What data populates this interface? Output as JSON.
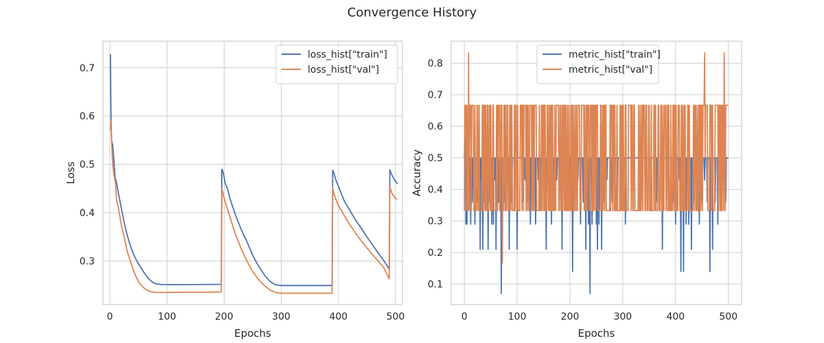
{
  "figure": {
    "title": "Convergence History"
  },
  "colors": {
    "train": "#4c72b0",
    "val": "#dd8452"
  },
  "chart_data": [
    {
      "type": "line",
      "xlabel": "Epochs",
      "ylabel": "Loss",
      "xlim": [
        -12,
        512
      ],
      "ylim": [
        0.21,
        0.755
      ],
      "xticks": [
        0,
        100,
        200,
        300,
        400,
        500
      ],
      "yticks": [
        0.3,
        0.4,
        0.5,
        0.6,
        0.7
      ],
      "xtick_labels": [
        "0",
        "100",
        "200",
        "300",
        "400",
        "500"
      ],
      "ytick_labels": [
        "0.3",
        "0.4",
        "0.5",
        "0.6",
        "0.7"
      ],
      "grid": true,
      "legend_position": "top-right",
      "series": [
        {
          "name": "loss_hist[\"train\"]",
          "color_key": "train",
          "points": [
            [
              1,
              0.728
            ],
            [
              2,
              0.6
            ],
            [
              3,
              0.55
            ],
            [
              5,
              0.54
            ],
            [
              7,
              0.51
            ],
            [
              9,
              0.475
            ],
            [
              12,
              0.46
            ],
            [
              15,
              0.44
            ],
            [
              20,
              0.41
            ],
            [
              25,
              0.38
            ],
            [
              30,
              0.355
            ],
            [
              35,
              0.335
            ],
            [
              40,
              0.318
            ],
            [
              45,
              0.305
            ],
            [
              50,
              0.295
            ],
            [
              55,
              0.285
            ],
            [
              60,
              0.276
            ],
            [
              65,
              0.268
            ],
            [
              70,
              0.261
            ],
            [
              75,
              0.256
            ],
            [
              80,
              0.253
            ],
            [
              90,
              0.2515
            ],
            [
              120,
              0.2512
            ],
            [
              160,
              0.2515
            ],
            [
              195,
              0.2518
            ],
            [
              196,
              0.49
            ],
            [
              197,
              0.488
            ],
            [
              199,
              0.48
            ],
            [
              202,
              0.46
            ],
            [
              206,
              0.45
            ],
            [
              210,
              0.43
            ],
            [
              220,
              0.395
            ],
            [
              230,
              0.365
            ],
            [
              240,
              0.34
            ],
            [
              250,
              0.312
            ],
            [
              260,
              0.29
            ],
            [
              270,
              0.272
            ],
            [
              280,
              0.258
            ],
            [
              290,
              0.251
            ],
            [
              300,
              0.2495
            ],
            [
              340,
              0.2495
            ],
            [
              389,
              0.2495
            ],
            [
              390,
              0.488
            ],
            [
              392,
              0.483
            ],
            [
              395,
              0.47
            ],
            [
              398,
              0.46
            ],
            [
              400,
              0.455
            ],
            [
              405,
              0.44
            ],
            [
              410,
              0.425
            ],
            [
              420,
              0.405
            ],
            [
              430,
              0.385
            ],
            [
              440,
              0.368
            ],
            [
              450,
              0.35
            ],
            [
              460,
              0.333
            ],
            [
              470,
              0.316
            ],
            [
              480,
              0.3
            ],
            [
              488,
              0.285
            ],
            [
              489,
              0.284
            ],
            [
              490,
              0.489
            ],
            [
              492,
              0.482
            ],
            [
              495,
              0.475
            ],
            [
              500,
              0.465
            ],
            [
              503,
              0.46
            ]
          ]
        },
        {
          "name": "loss_hist[\"val\"]",
          "color_key": "val",
          "points": [
            [
              1,
              0.57
            ],
            [
              2,
              0.59
            ],
            [
              3,
              0.55
            ],
            [
              5,
              0.5
            ],
            [
              7,
              0.48
            ],
            [
              10,
              0.46
            ],
            [
              12,
              0.425
            ],
            [
              15,
              0.41
            ],
            [
              20,
              0.375
            ],
            [
              25,
              0.35
            ],
            [
              30,
              0.322
            ],
            [
              35,
              0.303
            ],
            [
              40,
              0.285
            ],
            [
              45,
              0.27
            ],
            [
              50,
              0.258
            ],
            [
              55,
              0.25
            ],
            [
              60,
              0.244
            ],
            [
              65,
              0.24
            ],
            [
              70,
              0.237
            ],
            [
              80,
              0.235
            ],
            [
              100,
              0.2352
            ],
            [
              150,
              0.2355
            ],
            [
              195,
              0.236
            ],
            [
              196,
              0.45
            ],
            [
              198,
              0.44
            ],
            [
              200,
              0.43
            ],
            [
              205,
              0.41
            ],
            [
              210,
              0.392
            ],
            [
              220,
              0.355
            ],
            [
              230,
              0.325
            ],
            [
              240,
              0.3
            ],
            [
              250,
              0.278
            ],
            [
              260,
              0.262
            ],
            [
              270,
              0.25
            ],
            [
              280,
              0.24
            ],
            [
              290,
              0.235
            ],
            [
              300,
              0.2335
            ],
            [
              340,
              0.2335
            ],
            [
              389,
              0.2335
            ],
            [
              390,
              0.452
            ],
            [
              392,
              0.44
            ],
            [
              395,
              0.43
            ],
            [
              400,
              0.415
            ],
            [
              405,
              0.405
            ],
            [
              410,
              0.395
            ],
            [
              420,
              0.375
            ],
            [
              430,
              0.358
            ],
            [
              440,
              0.342
            ],
            [
              450,
              0.327
            ],
            [
              460,
              0.313
            ],
            [
              470,
              0.3
            ],
            [
              480,
              0.285
            ],
            [
              488,
              0.265
            ],
            [
              489,
              0.263
            ],
            [
              490,
              0.455
            ],
            [
              492,
              0.445
            ],
            [
              495,
              0.437
            ],
            [
              500,
              0.43
            ],
            [
              503,
              0.428
            ]
          ]
        }
      ]
    },
    {
      "type": "line",
      "xlabel": "Epochs",
      "ylabel": "Accuracy",
      "xlim": [
        -25,
        525
      ],
      "ylim": [
        0.035,
        0.87
      ],
      "xticks": [
        0,
        100,
        200,
        300,
        400,
        500
      ],
      "yticks": [
        0.1,
        0.2,
        0.3,
        0.4,
        0.5,
        0.6,
        0.7,
        0.8
      ],
      "xtick_labels": [
        "0",
        "100",
        "200",
        "300",
        "400",
        "500"
      ],
      "ytick_labels": [
        "0.1",
        "0.2",
        "0.3",
        "0.4",
        "0.5",
        "0.6",
        "0.7",
        "0.8"
      ],
      "grid": true,
      "legend_position": "top-center",
      "series": [
        {
          "name": "metric_hist[\"train\"]",
          "color_key": "train",
          "generator": {
            "from": 0,
            "to": 500,
            "base": 0.5,
            "overrides": [
              [
                1,
                0.57
              ],
              [
                3,
                0.29
              ],
              [
                5,
                0.29
              ],
              [
                8,
                0.36
              ],
              [
                10,
                0.43
              ],
              [
                12,
                0.29
              ],
              [
                15,
                0.36
              ],
              [
                20,
                0.29
              ],
              [
                25,
                0.36
              ],
              [
                30,
                0.21
              ],
              [
                32,
                0.43
              ],
              [
                35,
                0.21
              ],
              [
                38,
                0.36
              ],
              [
                42,
                0.43
              ],
              [
                45,
                0.21
              ],
              [
                48,
                0.36
              ],
              [
                52,
                0.29
              ],
              [
                55,
                0.29
              ],
              [
                57,
                0.43
              ],
              [
                60,
                0.21
              ],
              [
                62,
                0.36
              ],
              [
                65,
                0.36
              ],
              [
                70,
                0.07
              ],
              [
                75,
                0.36
              ],
              [
                80,
                0.43
              ],
              [
                85,
                0.21
              ],
              [
                90,
                0.36
              ],
              [
                95,
                0.43
              ],
              [
                100,
                0.21
              ],
              [
                110,
                0.36
              ],
              [
                115,
                0.43
              ],
              [
                120,
                0.36
              ],
              [
                125,
                0.29
              ],
              [
                130,
                0.36
              ],
              [
                135,
                0.29
              ],
              [
                140,
                0.43
              ],
              [
                145,
                0.36
              ],
              [
                150,
                0.43
              ],
              [
                155,
                0.21
              ],
              [
                160,
                0.36
              ],
              [
                165,
                0.29
              ],
              [
                170,
                0.36
              ],
              [
                175,
                0.43
              ],
              [
                180,
                0.36
              ],
              [
                185,
                0.21
              ],
              [
                190,
                0.36
              ],
              [
                195,
                0.43
              ],
              [
                200,
                0.36
              ],
              [
                205,
                0.14
              ],
              [
                210,
                0.36
              ],
              [
                215,
                0.43
              ],
              [
                220,
                0.29
              ],
              [
                225,
                0.36
              ],
              [
                230,
                0.21
              ],
              [
                235,
                0.29
              ],
              [
                238,
                0.07
              ],
              [
                242,
                0.29
              ],
              [
                245,
                0.36
              ],
              [
                250,
                0.29
              ],
              [
                252,
                0.21
              ],
              [
                255,
                0.29
              ],
              [
                260,
                0.21
              ],
              [
                265,
                0.36
              ],
              [
                270,
                0.43
              ],
              [
                280,
                0.36
              ],
              [
                285,
                0.43
              ],
              [
                290,
                0.36
              ],
              [
                300,
                0.43
              ],
              [
                305,
                0.29
              ],
              [
                320,
                0.43
              ],
              [
                335,
                0.36
              ],
              [
                350,
                0.43
              ],
              [
                365,
                0.36
              ],
              [
                375,
                0.21
              ],
              [
                385,
                0.43
              ],
              [
                395,
                0.36
              ],
              [
                400,
                0.29
              ],
              [
                405,
                0.43
              ],
              [
                410,
                0.14
              ],
              [
                415,
                0.14
              ],
              [
                420,
                0.29
              ],
              [
                425,
                0.29
              ],
              [
                430,
                0.21
              ],
              [
                435,
                0.36
              ],
              [
                440,
                0.43
              ],
              [
                445,
                0.29
              ],
              [
                450,
                0.36
              ],
              [
                455,
                0.43
              ],
              [
                460,
                0.36
              ],
              [
                465,
                0.14
              ],
              [
                470,
                0.21
              ],
              [
                475,
                0.36
              ],
              [
                480,
                0.29
              ],
              [
                485,
                0.36
              ],
              [
                490,
                0.43
              ],
              [
                495,
                0.36
              ]
            ]
          }
        },
        {
          "name": "metric_hist[\"val\"]",
          "color_key": "val",
          "generator": {
            "from": 0,
            "to": 500,
            "base": 0.333,
            "pattern": "alternating",
            "alt_values": [
              0.333,
              0.667
            ],
            "seed": 7,
            "overrides": [
              [
                8,
                0.833
              ],
              [
                72,
                0.167
              ],
              [
                73,
                0.5
              ],
              [
                455,
                0.833
              ],
              [
                456,
                0.5
              ],
              [
                492,
                0.833
              ],
              [
                493,
                0.5
              ],
              [
                496,
                0.667
              ],
              [
                497,
                0.667
              ],
              [
                498,
                0.667
              ],
              [
                499,
                0.667
              ],
              [
                500,
                0.667
              ]
            ]
          }
        }
      ]
    }
  ]
}
